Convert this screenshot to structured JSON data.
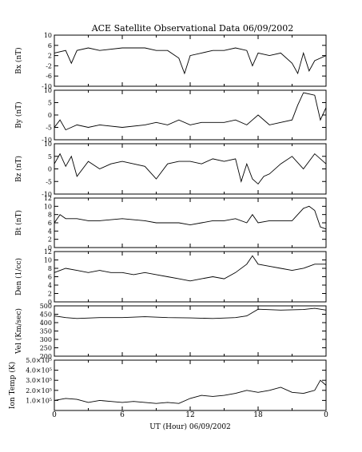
{
  "title": "ACE Satellite Observational Data   06/09/2002",
  "xlabel": "UT (Hour)   06/09/2002",
  "x_tick_labels": [
    "0",
    "6",
    "12",
    "18",
    "0"
  ],
  "chart_data": [
    {
      "type": "line",
      "ylabel": "Bx (nT)",
      "xlim": [
        0,
        24
      ],
      "ylim": [
        -10,
        10
      ],
      "y_ticks": [
        -10,
        -6,
        -2,
        2,
        6,
        10
      ],
      "y_tick_labels": [
        "-10",
        "-6",
        "-2",
        "2",
        "6",
        "10"
      ],
      "x": [
        0,
        1,
        1.5,
        2,
        3,
        4,
        6,
        8,
        9,
        10,
        11,
        11.5,
        12,
        13,
        14,
        15,
        16,
        17,
        17.5,
        18,
        19,
        20,
        21,
        21.5,
        22,
        22.5,
        23,
        24
      ],
      "y": [
        3,
        4,
        -1,
        4,
        5,
        4,
        5,
        5,
        4,
        4,
        1,
        -5,
        2,
        3,
        4,
        4,
        5,
        4,
        -2,
        3,
        2,
        3,
        -1,
        -5,
        3,
        -4,
        0,
        2
      ]
    },
    {
      "type": "line",
      "ylabel": "By (nT)",
      "xlim": [
        0,
        24
      ],
      "ylim": [
        -10,
        10
      ],
      "y_ticks": [
        -10,
        -5,
        0,
        5,
        10
      ],
      "y_tick_labels": [
        "-10",
        "-5",
        "0",
        "5",
        "10"
      ],
      "x": [
        0,
        0.5,
        1,
        2,
        3,
        4,
        6,
        8,
        9,
        10,
        11,
        12,
        13,
        14,
        15,
        16,
        17,
        17.5,
        18,
        19,
        20,
        21,
        21.5,
        22,
        23,
        23.5,
        24
      ],
      "y": [
        -5,
        -2,
        -6,
        -4,
        -5,
        -4,
        -5,
        -4,
        -3,
        -4,
        -2,
        -4,
        -3,
        -3,
        -3,
        -2,
        -4,
        -2,
        0,
        -4,
        -3,
        -2,
        4,
        9,
        8,
        -2,
        3
      ]
    },
    {
      "type": "line",
      "ylabel": "Bz (nT)",
      "xlim": [
        0,
        24
      ],
      "ylim": [
        -10,
        10
      ],
      "y_ticks": [
        -10,
        -5,
        0,
        5,
        10
      ],
      "y_tick_labels": [
        "-10",
        "-5",
        "0",
        "5",
        "10"
      ],
      "x": [
        0,
        0.5,
        1,
        1.5,
        2,
        3,
        4,
        5,
        6,
        7,
        8,
        9,
        10,
        11,
        12,
        13,
        14,
        15,
        16,
        16.5,
        17,
        17.5,
        18,
        18.5,
        19,
        20,
        21,
        22,
        23,
        24
      ],
      "y": [
        2,
        6,
        1,
        5,
        -3,
        3,
        0,
        2,
        3,
        2,
        1,
        -4,
        2,
        3,
        3,
        2,
        4,
        3,
        4,
        -5,
        2,
        -4,
        -6,
        -3,
        -2,
        2,
        5,
        0,
        6,
        2
      ]
    },
    {
      "type": "line",
      "ylabel": "Bt (nT)",
      "xlim": [
        0,
        24
      ],
      "ylim": [
        0,
        12
      ],
      "y_ticks": [
        0,
        2,
        4,
        6,
        8,
        10,
        12
      ],
      "y_tick_labels": [
        "0",
        "2",
        "4",
        "6",
        "8",
        "10",
        "12"
      ],
      "x": [
        0,
        0.5,
        1,
        2,
        3,
        4,
        6,
        8,
        9,
        10,
        11,
        12,
        13,
        14,
        15,
        16,
        17,
        17.5,
        18,
        19,
        20,
        21,
        22,
        22.5,
        23,
        23.5,
        24
      ],
      "y": [
        6,
        8,
        7,
        7,
        6.5,
        6.5,
        7,
        6.5,
        6,
        6,
        6,
        5.5,
        6,
        6.5,
        6.5,
        7,
        6,
        8,
        6,
        6.5,
        6.5,
        6.5,
        9.5,
        10,
        9,
        5,
        4.5
      ]
    },
    {
      "type": "line",
      "ylabel": "Den (1/cc)",
      "xlim": [
        0,
        24
      ],
      "ylim": [
        0,
        12
      ],
      "y_ticks": [
        0,
        2,
        4,
        6,
        8,
        10,
        12
      ],
      "y_tick_labels": [
        "0",
        "2",
        "4",
        "6",
        "8",
        "10",
        "12"
      ],
      "x": [
        0,
        1,
        2,
        3,
        4,
        5,
        6,
        7,
        8,
        9,
        10,
        11,
        12,
        13,
        14,
        15,
        16,
        17,
        17.5,
        18,
        19,
        20,
        21,
        22,
        23,
        24
      ],
      "y": [
        7,
        8,
        7.5,
        7,
        7.5,
        7,
        7,
        6.5,
        7,
        6.5,
        6,
        5.5,
        5,
        5.5,
        6,
        5.5,
        7,
        9,
        11,
        9,
        8.5,
        8,
        7.5,
        8,
        9,
        9
      ]
    },
    {
      "type": "line",
      "ylabel": "Vel (Km/sec)",
      "xlim": [
        0,
        24
      ],
      "ylim": [
        200,
        500
      ],
      "y_ticks": [
        200,
        250,
        300,
        350,
        400,
        450,
        500
      ],
      "y_tick_labels": [
        "200",
        "250",
        "300",
        "350",
        "400",
        "450",
        "500"
      ],
      "x": [
        0,
        1,
        2,
        4,
        6,
        8,
        10,
        12,
        14,
        16,
        17,
        18,
        20,
        22,
        23,
        24
      ],
      "y": [
        440,
        430,
        425,
        430,
        430,
        435,
        430,
        428,
        425,
        430,
        440,
        480,
        475,
        478,
        485,
        475
      ]
    },
    {
      "type": "line",
      "ylabel": "Ion Temp (K)",
      "xlim": [
        0,
        24
      ],
      "ylim": [
        0,
        500000
      ],
      "y_ticks": [
        0,
        100000,
        200000,
        300000,
        400000,
        500000
      ],
      "y_tick_labels": [
        "",
        "1.0×10⁵",
        "2.0×10⁵",
        "3.0×10⁵",
        "4.0×10⁵",
        "5.0×10⁵"
      ],
      "x": [
        0,
        1,
        2,
        3,
        4,
        5,
        6,
        7,
        8,
        9,
        10,
        11,
        12,
        13,
        14,
        15,
        16,
        17,
        18,
        19,
        20,
        21,
        22,
        23,
        23.5,
        24
      ],
      "y": [
        100000,
        120000,
        110000,
        80000,
        100000,
        90000,
        80000,
        90000,
        80000,
        70000,
        80000,
        70000,
        120000,
        150000,
        140000,
        150000,
        170000,
        200000,
        180000,
        200000,
        230000,
        180000,
        170000,
        200000,
        300000,
        250000
      ]
    }
  ]
}
